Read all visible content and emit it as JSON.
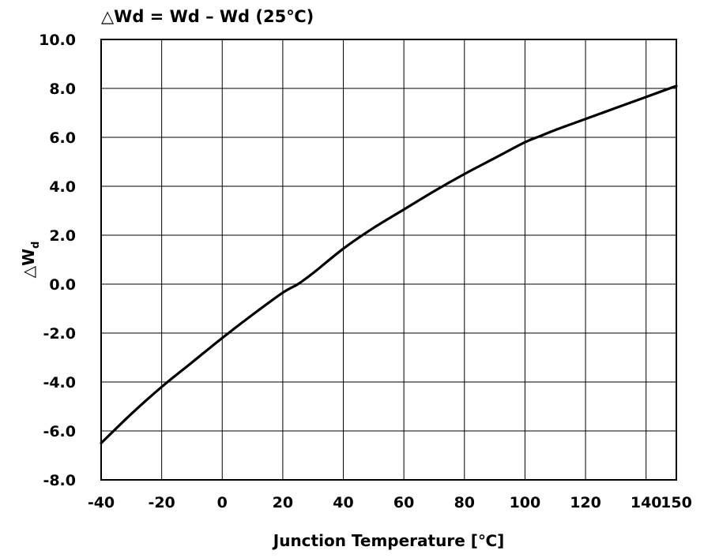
{
  "chart_data": {
    "type": "line",
    "title": "△Wd = Wd – Wd (25℃)",
    "xlabel": "Junction Temperature [℃]",
    "ylabel": {
      "main": "△W",
      "subscript": "d"
    },
    "xlim": [
      -40,
      150
    ],
    "ylim": [
      -8.0,
      10.0
    ],
    "xticks": [
      -40,
      -20,
      0,
      20,
      40,
      60,
      80,
      100,
      120,
      140,
      150
    ],
    "xtick_labels": [
      "-40",
      "-20",
      "0",
      "20",
      "40",
      "60",
      "80",
      "100",
      "120",
      "140",
      "150"
    ],
    "yticks": [
      -8,
      -6,
      -4,
      -2,
      0,
      2,
      4,
      6,
      8,
      10
    ],
    "ytick_labels": [
      "-8.0",
      "-6.0",
      "-4.0",
      "-2.0",
      "0.0",
      "2.0",
      "4.0",
      "6.0",
      "8.0",
      "10.0"
    ],
    "grid": true,
    "series": [
      {
        "x": [
          -40,
          -30,
          -20,
          -10,
          0,
          10,
          20,
          25,
          30,
          40,
          50,
          60,
          70,
          80,
          90,
          100,
          105,
          110,
          120,
          130,
          140,
          150
        ],
        "y": [
          -6.5,
          -5.3,
          -4.2,
          -3.2,
          -2.2,
          -1.25,
          -0.35,
          0.0,
          0.45,
          1.45,
          2.3,
          3.05,
          3.8,
          4.5,
          5.15,
          5.8,
          6.05,
          6.3,
          6.75,
          7.2,
          7.65,
          8.1
        ]
      }
    ]
  }
}
